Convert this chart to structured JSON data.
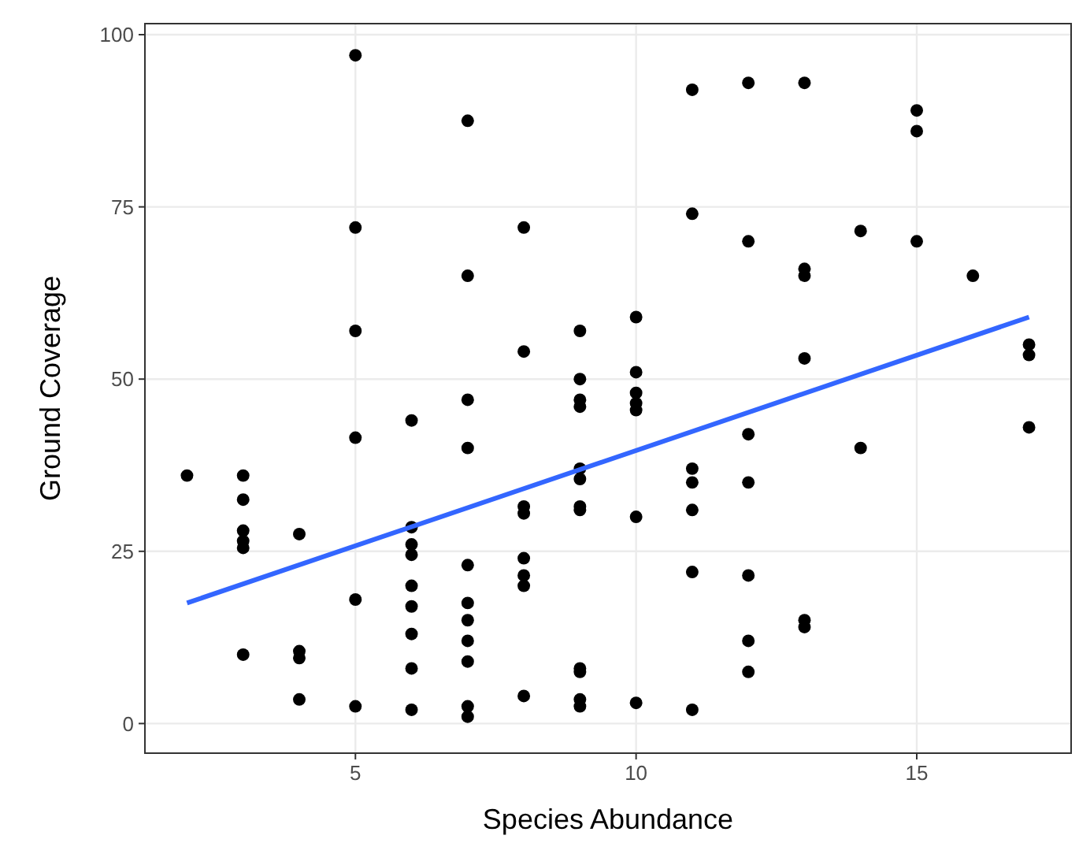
{
  "chart_data": {
    "type": "scatter",
    "xlabel": "Species Abundance",
    "ylabel": "Ground Coverage",
    "xlim": [
      1.25,
      17.75
    ],
    "ylim": [
      -4.3,
      101.6
    ],
    "xticks": [
      5,
      10,
      15
    ],
    "yticks": [
      0,
      25,
      50,
      75,
      100
    ],
    "grid": true,
    "marker": "circle",
    "series": [
      {
        "color": "#000000",
        "x": [
          2,
          3,
          3,
          3,
          3,
          3,
          3,
          4,
          4,
          4,
          4,
          5,
          5,
          5,
          5,
          5,
          5,
          6,
          6,
          6,
          6,
          6,
          6,
          6,
          6,
          6,
          7,
          7,
          7,
          7,
          7,
          7,
          7,
          7,
          7,
          7,
          7,
          8,
          8,
          8,
          8,
          8,
          8,
          8,
          8,
          9,
          9,
          9,
          9,
          9,
          9,
          9,
          9,
          9,
          9,
          9,
          9,
          10,
          10,
          10,
          10,
          10,
          10,
          10,
          11,
          11,
          11,
          11,
          11,
          11,
          11,
          12,
          12,
          12,
          12,
          12,
          12,
          12,
          13,
          13,
          13,
          13,
          13,
          13,
          14,
          14,
          15,
          15,
          15,
          16,
          17,
          17,
          17
        ],
        "values": [
          36,
          36,
          32.5,
          28,
          26.5,
          25.5,
          10,
          27.5,
          10.5,
          9.5,
          3.5,
          97,
          72,
          57,
          41.5,
          18,
          2.5,
          44,
          28.5,
          26,
          24.5,
          20,
          17,
          13,
          8,
          2,
          87.5,
          65,
          47,
          40,
          23,
          17.5,
          15,
          12,
          9,
          2.5,
          1,
          72,
          54,
          31.5,
          30.5,
          24,
          21.5,
          20,
          4,
          57,
          50,
          47,
          46,
          37,
          35.5,
          31.5,
          31,
          8,
          7.5,
          3.5,
          2.5,
          59,
          51,
          48,
          46.5,
          45.5,
          30,
          3,
          92,
          74,
          37,
          35,
          31,
          22,
          2,
          93,
          70,
          42,
          35,
          21.5,
          12,
          7.5,
          93,
          66,
          65,
          53,
          15,
          14,
          71.5,
          40,
          89,
          86,
          70,
          65,
          55,
          53.5,
          43
        ]
      },
      {
        "type": "line",
        "color": "#3366ff",
        "marker": "none",
        "x": [
          2,
          17
        ],
        "values": [
          17.5,
          59
        ]
      }
    ]
  }
}
